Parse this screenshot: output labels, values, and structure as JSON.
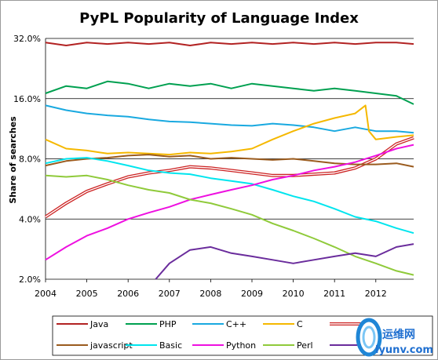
{
  "chart_data": {
    "type": "line",
    "title": "PyPL Popularity of Language Index",
    "ylabel": "Share of searches",
    "xlabel": "",
    "y_scale": "log2",
    "ylim": [
      2.0,
      32.0
    ],
    "y_ticks": [
      "2.0%",
      "4.0%",
      "8.0%",
      "16.0%",
      "32.0%"
    ],
    "x_ticks": [
      "2004",
      "2005",
      "2006",
      "2007",
      "2008",
      "2009",
      "2010",
      "2011",
      "2012"
    ],
    "xlim": [
      "2004-01",
      "2012-12"
    ],
    "grid": "horizontal",
    "legend_position": "bottom",
    "series": [
      {
        "name": "Java",
        "color": "#b22222",
        "style": "solid",
        "x": [
          "2004-01",
          "2004-07",
          "2005-01",
          "2005-07",
          "2006-01",
          "2006-07",
          "2007-01",
          "2007-07",
          "2008-01",
          "2008-07",
          "2009-01",
          "2009-07",
          "2010-01",
          "2010-07",
          "2011-01",
          "2011-07",
          "2012-01",
          "2012-07",
          "2012-12"
        ],
        "values": [
          30.5,
          29.5,
          30.5,
          30.0,
          30.5,
          30.0,
          30.5,
          29.5,
          30.5,
          30.0,
          30.5,
          30.0,
          30.5,
          30.0,
          30.5,
          30.0,
          30.5,
          30.5,
          30.0
        ]
      },
      {
        "name": "PHP",
        "color": "#00a050",
        "style": "solid",
        "x": [
          "2004-01",
          "2004-07",
          "2005-01",
          "2005-07",
          "2006-01",
          "2006-07",
          "2007-01",
          "2007-07",
          "2008-01",
          "2008-07",
          "2009-01",
          "2009-07",
          "2010-01",
          "2010-07",
          "2011-01",
          "2011-07",
          "2012-01",
          "2012-07",
          "2012-12"
        ],
        "values": [
          17.0,
          18.5,
          18.0,
          19.5,
          19.0,
          18.0,
          19.0,
          18.5,
          19.0,
          18.0,
          19.0,
          18.5,
          18.0,
          17.5,
          18.0,
          17.5,
          17.0,
          16.5,
          15.0
        ]
      },
      {
        "name": "C++",
        "color": "#19a9e0",
        "style": "solid",
        "x": [
          "2004-01",
          "2004-07",
          "2005-01",
          "2005-07",
          "2006-01",
          "2006-07",
          "2007-01",
          "2007-07",
          "2008-01",
          "2008-07",
          "2009-01",
          "2009-07",
          "2010-01",
          "2010-07",
          "2011-01",
          "2011-07",
          "2012-01",
          "2012-07",
          "2012-12"
        ],
        "values": [
          14.8,
          14.0,
          13.5,
          13.2,
          13.0,
          12.6,
          12.3,
          12.2,
          12.0,
          11.8,
          11.7,
          12.0,
          11.8,
          11.5,
          11.0,
          11.5,
          11.0,
          11.0,
          10.8
        ]
      },
      {
        "name": "C",
        "color": "#f5b800",
        "style": "solid",
        "x": [
          "2004-01",
          "2004-07",
          "2005-01",
          "2005-07",
          "2006-01",
          "2006-07",
          "2007-01",
          "2007-07",
          "2008-01",
          "2008-07",
          "2009-01",
          "2009-07",
          "2010-01",
          "2010-07",
          "2011-01",
          "2011-07",
          "2011-10",
          "2011-11",
          "2012-01",
          "2012-07",
          "2012-12"
        ],
        "values": [
          10.0,
          9.0,
          8.8,
          8.5,
          8.6,
          8.5,
          8.4,
          8.6,
          8.5,
          8.7,
          9.0,
          10.0,
          11.0,
          12.0,
          12.8,
          13.5,
          14.8,
          11.0,
          10.0,
          10.3,
          10.5
        ]
      },
      {
        "name": "",
        "color": "#cc2222",
        "style": "double",
        "x": [
          "2004-01",
          "2004-07",
          "2005-01",
          "2005-07",
          "2006-01",
          "2006-07",
          "2007-01",
          "2007-07",
          "2008-01",
          "2008-07",
          "2009-01",
          "2009-07",
          "2010-01",
          "2010-07",
          "2011-01",
          "2011-07",
          "2012-01",
          "2012-07",
          "2012-12"
        ],
        "values": [
          4.1,
          4.8,
          5.5,
          6.0,
          6.5,
          6.8,
          7.0,
          7.3,
          7.2,
          7.0,
          6.8,
          6.6,
          6.6,
          6.7,
          6.8,
          7.2,
          8.0,
          9.5,
          10.2
        ]
      },
      {
        "name": "javascript",
        "color": "#9a5b1e",
        "style": "solid",
        "x": [
          "2004-01",
          "2004-07",
          "2005-01",
          "2005-07",
          "2006-01",
          "2006-07",
          "2007-01",
          "2007-07",
          "2008-01",
          "2008-07",
          "2009-01",
          "2009-07",
          "2010-01",
          "2010-07",
          "2011-01",
          "2011-07",
          "2012-01",
          "2012-07",
          "2012-12"
        ],
        "values": [
          7.4,
          7.8,
          8.0,
          8.1,
          8.3,
          8.4,
          8.2,
          8.3,
          8.0,
          8.1,
          8.0,
          7.9,
          8.0,
          7.8,
          7.6,
          7.5,
          7.5,
          7.6,
          7.3
        ]
      },
      {
        "name": "Basic",
        "color": "#00e5ee",
        "style": "solid",
        "x": [
          "2004-01",
          "2004-07",
          "2005-01",
          "2005-07",
          "2006-01",
          "2006-07",
          "2007-01",
          "2007-07",
          "2008-01",
          "2008-07",
          "2009-01",
          "2009-07",
          "2010-01",
          "2010-07",
          "2011-01",
          "2011-07",
          "2012-01",
          "2012-07",
          "2012-12"
        ],
        "values": [
          7.6,
          8.0,
          8.1,
          7.8,
          7.4,
          7.0,
          6.8,
          6.7,
          6.4,
          6.2,
          6.0,
          5.6,
          5.2,
          4.9,
          4.5,
          4.1,
          3.9,
          3.6,
          3.4
        ]
      },
      {
        "name": "Python",
        "color": "#ee10e0",
        "style": "solid",
        "x": [
          "2004-01",
          "2004-07",
          "2005-01",
          "2005-07",
          "2006-01",
          "2006-07",
          "2007-01",
          "2007-07",
          "2008-01",
          "2008-07",
          "2009-01",
          "2009-07",
          "2010-01",
          "2010-07",
          "2011-01",
          "2011-07",
          "2012-01",
          "2012-07",
          "2012-12"
        ],
        "values": [
          2.5,
          2.9,
          3.3,
          3.6,
          4.0,
          4.3,
          4.6,
          5.0,
          5.3,
          5.6,
          5.9,
          6.3,
          6.6,
          7.0,
          7.3,
          7.7,
          8.3,
          9.0,
          9.4
        ]
      },
      {
        "name": "Perl",
        "color": "#8fca3a",
        "style": "solid",
        "x": [
          "2004-01",
          "2004-07",
          "2005-01",
          "2005-07",
          "2006-01",
          "2006-07",
          "2007-01",
          "2007-07",
          "2008-01",
          "2008-07",
          "2009-01",
          "2009-07",
          "2010-01",
          "2010-07",
          "2011-01",
          "2011-07",
          "2012-01",
          "2012-07",
          "2012-12"
        ],
        "values": [
          6.6,
          6.5,
          6.6,
          6.3,
          5.9,
          5.6,
          5.4,
          5.0,
          4.8,
          4.5,
          4.2,
          3.8,
          3.5,
          3.2,
          2.9,
          2.6,
          2.4,
          2.2,
          2.1
        ]
      },
      {
        "name": "",
        "color": "#6a2c9c",
        "style": "solid",
        "x": [
          "2006-09",
          "2007-01",
          "2007-07",
          "2008-01",
          "2008-07",
          "2009-01",
          "2009-07",
          "2010-01",
          "2010-07",
          "2011-01",
          "2011-07",
          "2012-01",
          "2012-07",
          "2012-12"
        ],
        "values": [
          2.0,
          2.4,
          2.8,
          2.9,
          2.7,
          2.6,
          2.5,
          2.4,
          2.5,
          2.6,
          2.7,
          2.6,
          2.9,
          3.0
        ]
      }
    ]
  },
  "watermark": {
    "chinese_text": "运维网",
    "url_text": "lyunv.com"
  }
}
